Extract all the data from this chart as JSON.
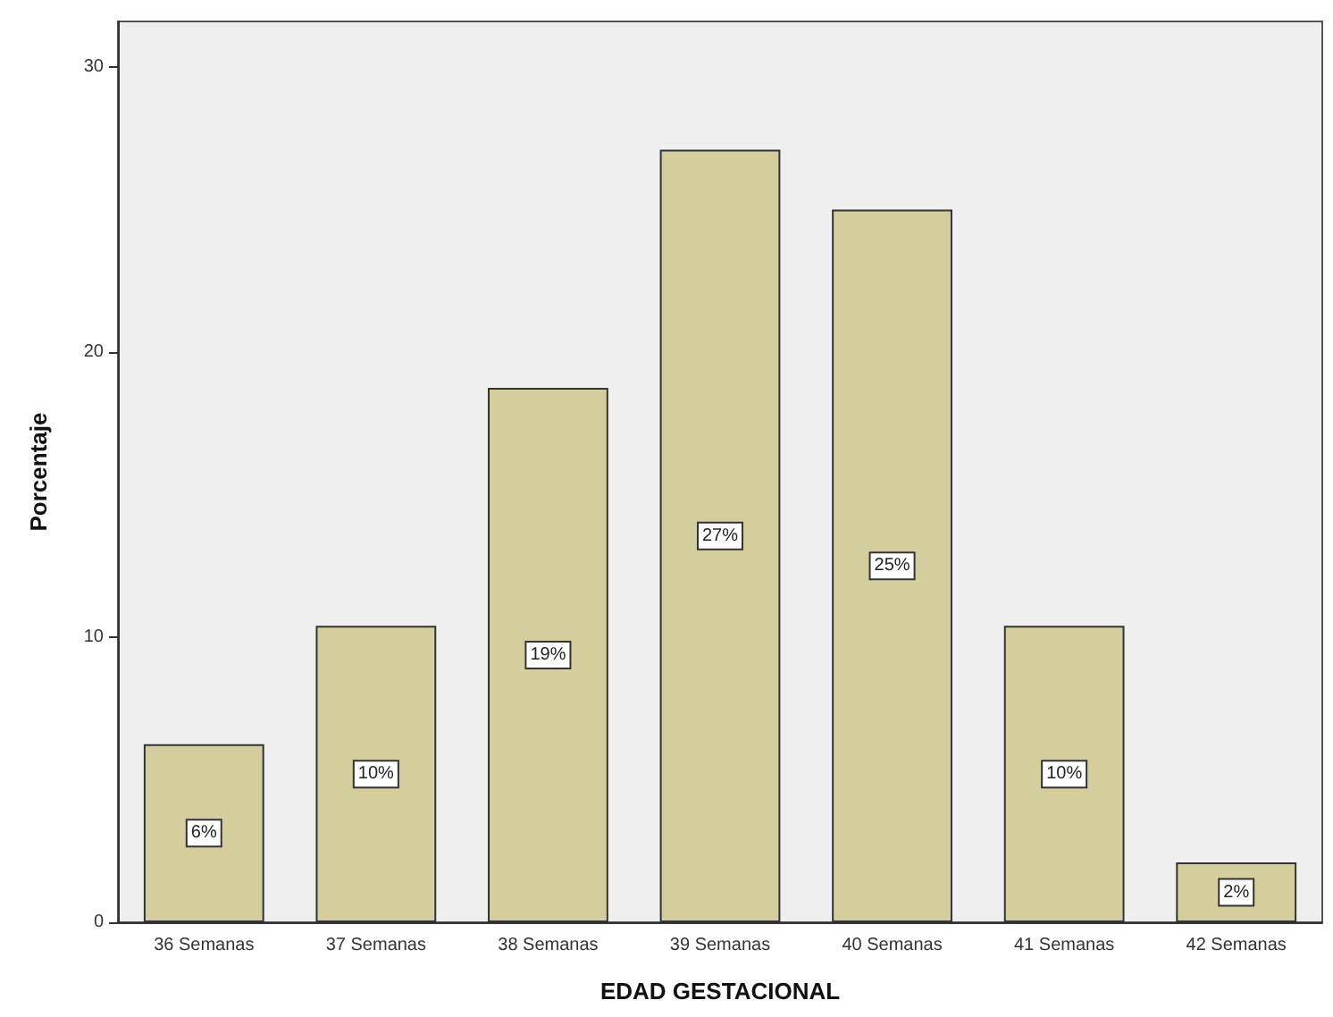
{
  "chart_data": {
    "type": "bar",
    "xlabel": "EDAD GESTACIONAL",
    "ylabel": "Porcentaje",
    "categories": [
      "36 Semanas",
      "37 Semanas",
      "38 Semanas",
      "39 Semanas",
      "40 Semanas",
      "41 Semanas",
      "42 Semanas"
    ],
    "values": [
      6.25,
      10.4,
      18.75,
      27.1,
      25,
      10.4,
      2.1
    ],
    "value_labels": [
      "6%",
      "10%",
      "19%",
      "27%",
      "25%",
      "10%",
      "2%"
    ],
    "color": "#d3ce9c",
    "ylim": [
      0,
      31.6
    ],
    "yticks": [
      0,
      10,
      20,
      30
    ],
    "grid": false
  }
}
